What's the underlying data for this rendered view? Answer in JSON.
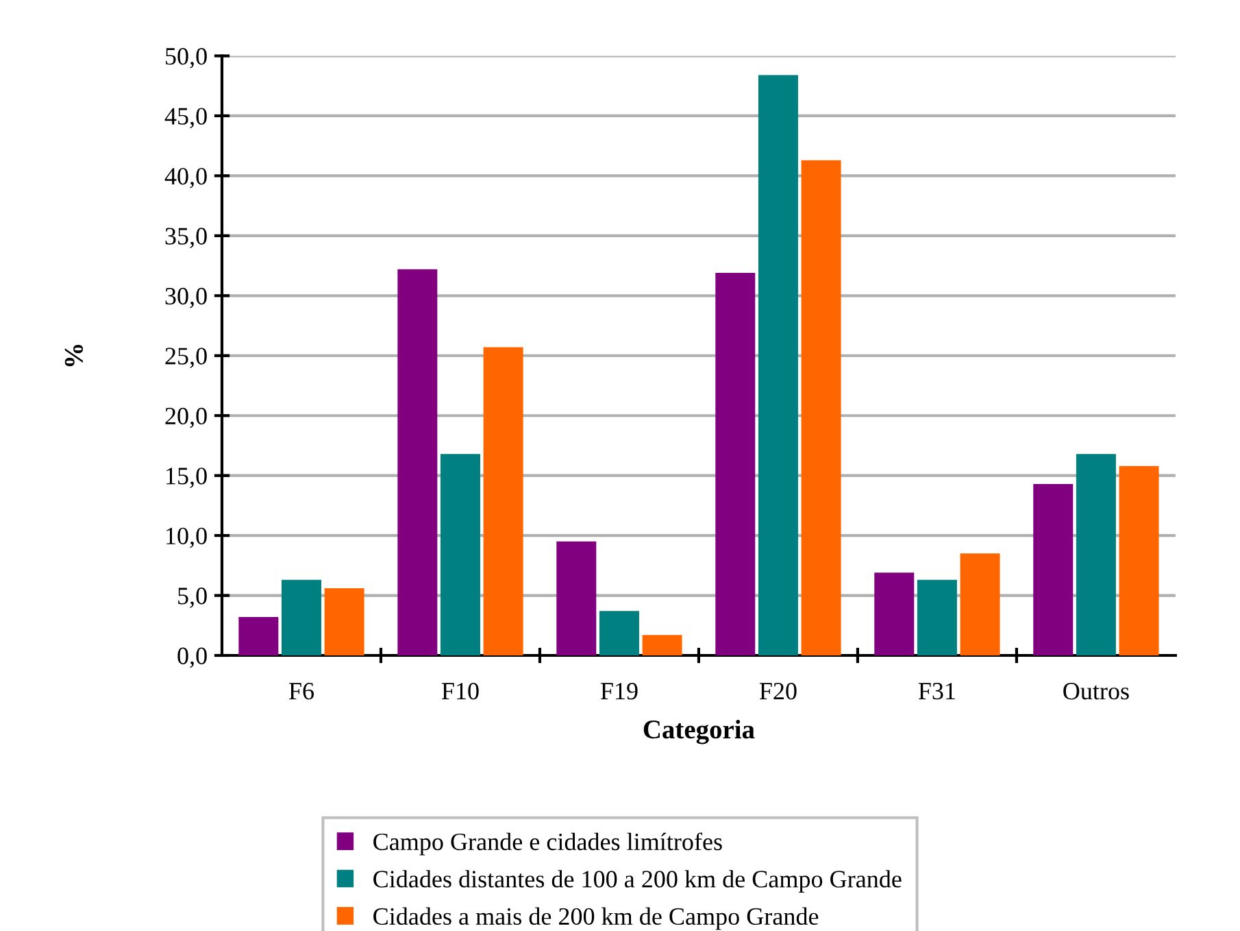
{
  "chart_data": {
    "type": "bar",
    "xlabel": "Categoria",
    "ylabel": "%",
    "categories": [
      "F6",
      "F10",
      "F19",
      "F20",
      "F31",
      "Outros"
    ],
    "series": [
      {
        "name": "Campo Grande e cidades limítrofes",
        "color": "#800080",
        "values": [
          3.2,
          32.2,
          9.5,
          31.9,
          6.9,
          14.3
        ]
      },
      {
        "name": "Cidades distantes de 100 a 200 km de Campo Grande",
        "color": "#008080",
        "values": [
          6.3,
          16.8,
          3.7,
          48.4,
          6.3,
          16.8
        ]
      },
      {
        "name": "Cidades a mais de 200 km de Campo Grande",
        "color": "#ff6600",
        "values": [
          5.6,
          25.7,
          1.7,
          41.3,
          8.5,
          15.8
        ]
      }
    ],
    "ylim": [
      0,
      50
    ],
    "yticks": [
      {
        "value": 0,
        "label": "0,0"
      },
      {
        "value": 5,
        "label": "5,0"
      },
      {
        "value": 10,
        "label": "10,0"
      },
      {
        "value": 15,
        "label": "15,0"
      },
      {
        "value": 20,
        "label": "20,0"
      },
      {
        "value": 25,
        "label": "25,0"
      },
      {
        "value": 30,
        "label": "30,0"
      },
      {
        "value": 35,
        "label": "35,0"
      },
      {
        "value": 40,
        "label": "40,0"
      },
      {
        "value": 45,
        "label": "45,0"
      },
      {
        "value": 50,
        "label": "50,0"
      }
    ],
    "grid": "y",
    "legend": "bottom"
  }
}
